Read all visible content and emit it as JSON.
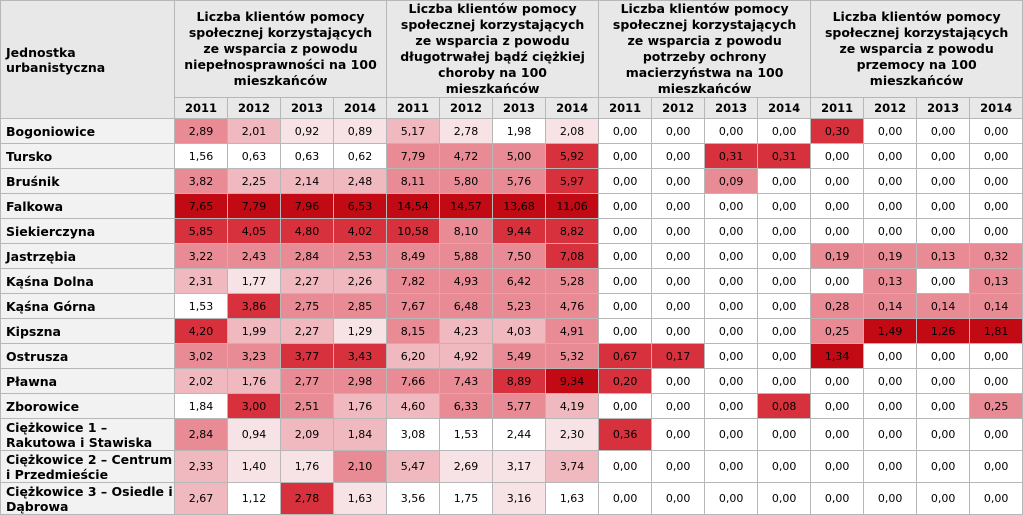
{
  "table": {
    "unit_header": "Jednostka urbanistyczna",
    "groups": [
      "Liczba klientów pomocy społecznej korzystających ze wsparcia z powodu niepełnosprawności na 100 mieszkańców",
      "Liczba klientów pomocy społecznej korzystających ze wsparcia z powodu długotrwałej bądź ciężkiej choroby na 100 mieszkańców",
      "Liczba klientów pomocy społecznej korzystających ze wsparcia z powodu potrzeby ochrony macierzyństwa na 100 mieszkańców",
      "Liczba klientów pomocy społecznej korzystających ze wsparcia z powodu przemocy na 100 mieszkańców"
    ],
    "years": [
      "2011",
      "2012",
      "2013",
      "2014"
    ],
    "rows": [
      {
        "name": "Bogoniowice",
        "values": [
          "2,89",
          "2,01",
          "0,92",
          "0,89",
          "5,17",
          "2,78",
          "1,98",
          "2,08",
          "0,00",
          "0,00",
          "0,00",
          "0,00",
          "0,30",
          "0,00",
          "0,00",
          "0,00"
        ],
        "shade": [
          3,
          2,
          1,
          1,
          2,
          1,
          0,
          1,
          0,
          0,
          0,
          0,
          4,
          0,
          0,
          0
        ]
      },
      {
        "name": "Tursko",
        "values": [
          "1,56",
          "0,63",
          "0,63",
          "0,62",
          "7,79",
          "4,72",
          "5,00",
          "5,92",
          "0,00",
          "0,00",
          "0,31",
          "0,31",
          "0,00",
          "0,00",
          "0,00",
          "0,00"
        ],
        "shade": [
          0,
          0,
          0,
          0,
          3,
          3,
          3,
          4,
          0,
          0,
          4,
          4,
          0,
          0,
          0,
          0
        ]
      },
      {
        "name": "Bruśnik",
        "values": [
          "3,82",
          "2,25",
          "2,14",
          "2,48",
          "8,11",
          "5,80",
          "5,76",
          "5,97",
          "0,00",
          "0,00",
          "0,09",
          "0,00",
          "0,00",
          "0,00",
          "0,00",
          "0,00"
        ],
        "shade": [
          3,
          2,
          2,
          2,
          3,
          3,
          3,
          4,
          0,
          0,
          3,
          0,
          0,
          0,
          0,
          0
        ]
      },
      {
        "name": "Falkowa",
        "values": [
          "7,65",
          "7,79",
          "7,96",
          "6,53",
          "14,54",
          "14,57",
          "13,68",
          "11,06",
          "0,00",
          "0,00",
          "0,00",
          "0,00",
          "0,00",
          "0,00",
          "0,00",
          "0,00"
        ],
        "shade": [
          5,
          5,
          5,
          5,
          5,
          5,
          5,
          5,
          0,
          0,
          0,
          0,
          0,
          0,
          0,
          0
        ]
      },
      {
        "name": "Siekierczyna",
        "values": [
          "5,85",
          "4,05",
          "4,80",
          "4,02",
          "10,58",
          "8,10",
          "9,44",
          "8,82",
          "0,00",
          "0,00",
          "0,00",
          "0,00",
          "0,00",
          "0,00",
          "0,00",
          "0,00"
        ],
        "shade": [
          4,
          4,
          4,
          4,
          4,
          3,
          4,
          4,
          0,
          0,
          0,
          0,
          0,
          0,
          0,
          0
        ]
      },
      {
        "name": "Jastrzębia",
        "values": [
          "3,22",
          "2,43",
          "2,84",
          "2,53",
          "8,49",
          "5,88",
          "7,50",
          "7,08",
          "0,00",
          "0,00",
          "0,00",
          "0,00",
          "0,19",
          "0,19",
          "0,13",
          "0,32"
        ],
        "shade": [
          3,
          3,
          3,
          3,
          3,
          3,
          3,
          4,
          0,
          0,
          0,
          0,
          3,
          3,
          3,
          3
        ]
      },
      {
        "name": "Kąśna Dolna",
        "values": [
          "2,31",
          "1,77",
          "2,27",
          "2,26",
          "7,82",
          "4,93",
          "6,42",
          "5,28",
          "0,00",
          "0,00",
          "0,00",
          "0,00",
          "0,00",
          "0,13",
          "0,00",
          "0,13"
        ],
        "shade": [
          2,
          1,
          2,
          2,
          3,
          3,
          3,
          3,
          0,
          0,
          0,
          0,
          0,
          3,
          0,
          3
        ]
      },
      {
        "name": "Kąśna Górna",
        "values": [
          "1,53",
          "3,86",
          "2,75",
          "2,85",
          "7,67",
          "6,48",
          "5,23",
          "4,76",
          "0,00",
          "0,00",
          "0,00",
          "0,00",
          "0,28",
          "0,14",
          "0,14",
          "0,14"
        ],
        "shade": [
          0,
          4,
          3,
          3,
          3,
          3,
          3,
          3,
          0,
          0,
          0,
          0,
          3,
          3,
          3,
          3
        ]
      },
      {
        "name": "Kipszna",
        "values": [
          "4,20",
          "1,99",
          "2,27",
          "1,29",
          "8,15",
          "4,23",
          "4,03",
          "4,91",
          "0,00",
          "0,00",
          "0,00",
          "0,00",
          "0,25",
          "1,49",
          "1,26",
          "1,81"
        ],
        "shade": [
          4,
          2,
          2,
          1,
          3,
          2,
          2,
          3,
          0,
          0,
          0,
          0,
          3,
          5,
          5,
          5
        ]
      },
      {
        "name": "Ostrusza",
        "values": [
          "3,02",
          "3,23",
          "3,77",
          "3,43",
          "6,20",
          "4,92",
          "5,49",
          "5,32",
          "0,67",
          "0,17",
          "0,00",
          "0,00",
          "1,34",
          "0,00",
          "0,00",
          "0,00"
        ],
        "shade": [
          3,
          3,
          4,
          4,
          2,
          2,
          3,
          3,
          4,
          4,
          0,
          0,
          5,
          0,
          0,
          0
        ]
      },
      {
        "name": "Pławna",
        "values": [
          "2,02",
          "1,76",
          "2,77",
          "2,98",
          "7,66",
          "7,43",
          "8,89",
          "9,34",
          "0,20",
          "0,00",
          "0,00",
          "0,00",
          "0,00",
          "0,00",
          "0,00",
          "0,00"
        ],
        "shade": [
          2,
          2,
          3,
          3,
          3,
          3,
          4,
          5,
          4,
          0,
          0,
          0,
          0,
          0,
          0,
          0
        ]
      },
      {
        "name": "Zborowice",
        "values": [
          "1,84",
          "3,00",
          "2,51",
          "1,76",
          "4,60",
          "6,33",
          "5,77",
          "4,19",
          "0,00",
          "0,00",
          "0,00",
          "0,08",
          "0,00",
          "0,00",
          "0,00",
          "0,25"
        ],
        "shade": [
          0,
          4,
          3,
          2,
          2,
          3,
          3,
          2,
          0,
          0,
          0,
          4,
          0,
          0,
          0,
          3
        ]
      },
      {
        "name": "Ciężkowice 1 – Rakutowa i Stawiska",
        "values": [
          "2,84",
          "0,94",
          "2,09",
          "1,84",
          "3,08",
          "1,53",
          "2,44",
          "2,30",
          "0,36",
          "0,00",
          "0,00",
          "0,00",
          "0,00",
          "0,00",
          "0,00",
          "0,00"
        ],
        "shade": [
          3,
          1,
          2,
          2,
          0,
          0,
          0,
          1,
          4,
          0,
          0,
          0,
          0,
          0,
          0,
          0
        ]
      },
      {
        "name": "Ciężkowice 2 – Centrum i Przedmieście",
        "values": [
          "2,33",
          "1,40",
          "1,76",
          "2,10",
          "5,47",
          "2,69",
          "3,17",
          "3,74",
          "0,00",
          "0,00",
          "0,00",
          "0,00",
          "0,00",
          "0,00",
          "0,00",
          "0,00"
        ],
        "shade": [
          2,
          1,
          1,
          3,
          2,
          1,
          1,
          2,
          0,
          0,
          0,
          0,
          0,
          0,
          0,
          0
        ]
      },
      {
        "name": "Ciężkowice 3 – Osiedle i Dąbrowa",
        "values": [
          "2,67",
          "1,12",
          "2,78",
          "1,63",
          "3,56",
          "1,75",
          "3,16",
          "1,63",
          "0,00",
          "0,00",
          "0,00",
          "0,00",
          "0,00",
          "0,00",
          "0,00",
          "0,00"
        ],
        "shade": [
          2,
          0,
          4,
          1,
          0,
          0,
          1,
          0,
          0,
          0,
          0,
          0,
          0,
          0,
          0,
          0
        ]
      }
    ]
  },
  "colors": [
    "#f7e3e5",
    "#f0b9bf",
    "#e88b95",
    "#d6313c",
    "#c20a14",
    "#9f0a0f"
  ]
}
